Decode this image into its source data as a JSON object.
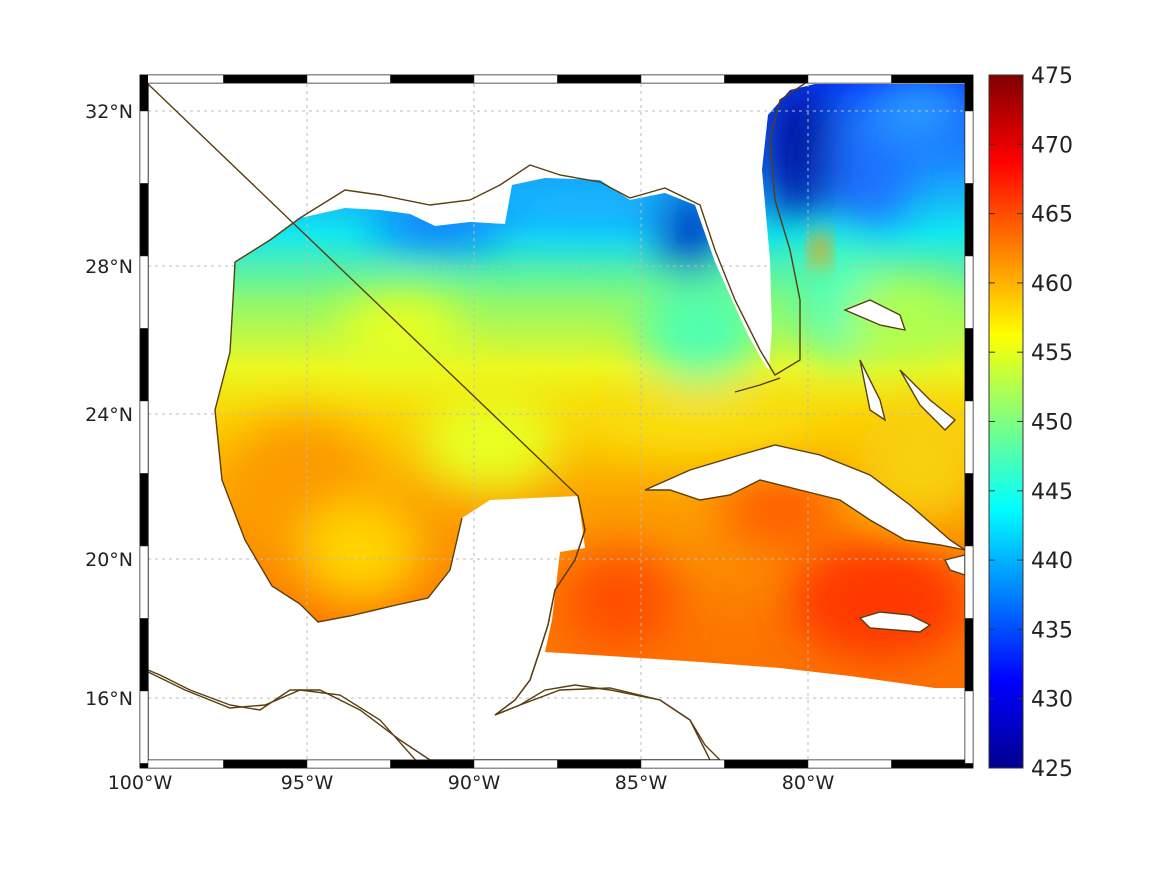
{
  "chart_data": {
    "type": "heatmap",
    "title": "",
    "region": "Gulf of Mexico and Caribbean",
    "lon_range": [
      -100,
      -75
    ],
    "lat_range": [
      14,
      33
    ],
    "x_ticks": [
      "100°W",
      "95°W",
      "90°W",
      "85°W",
      "80°W"
    ],
    "y_ticks": [
      "32°N",
      "28°N",
      "24°N",
      "20°N",
      "16°N"
    ],
    "grid": true,
    "colormap": "jet",
    "colorbar": {
      "range": [
        425,
        475
      ],
      "ticks": [
        "475",
        "470",
        "465",
        "460",
        "455",
        "450",
        "445",
        "440",
        "435",
        "430",
        "425"
      ],
      "placement": "right"
    },
    "field_summary": {
      "northern_gulf_shelf": 440,
      "central_gulf": 453,
      "southern_gulf": 460,
      "caribbean": 465,
      "atlantic_off_florida": 435
    }
  },
  "colors": {
    "coastline": "#5a3e10",
    "land": "#ffffff",
    "grid": "#bbbbbb"
  }
}
